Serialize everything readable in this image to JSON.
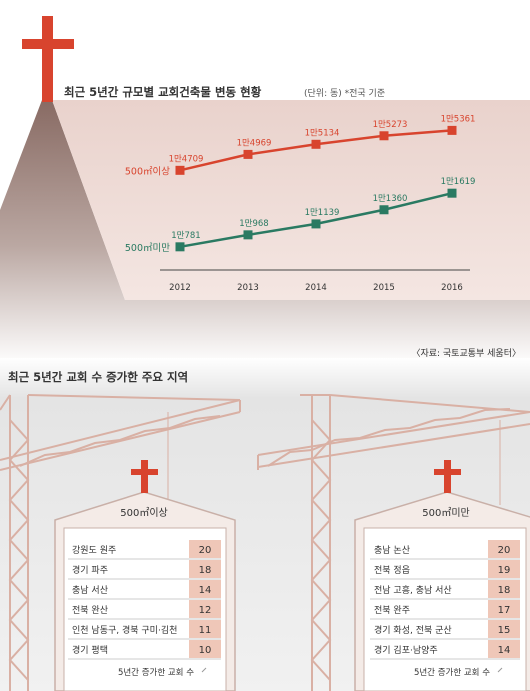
{
  "top": {
    "title": "최근 5년간 규모별 교회건축물 변동 현황",
    "unit_note": "(단위: 동) *전국 기준",
    "source": "〈자료: 국토교통부 세움터〉"
  },
  "chart_data": {
    "type": "line",
    "title": "최근 5년간 규모별 교회건축물 변동 현황",
    "unit": "(단위: 동)",
    "x": [
      "2012",
      "2013",
      "2014",
      "2015",
      "2016"
    ],
    "series": [
      {
        "name": "500㎡이상",
        "values": [
          14709,
          14969,
          15134,
          15273,
          15361
        ],
        "labels": [
          "1만4709",
          "1만4969",
          "1만5134",
          "1만5273",
          "1만5361"
        ],
        "color": "#d8442e"
      },
      {
        "name": "500㎡미만",
        "values": [
          10781,
          10968,
          11139,
          11360,
          11619
        ],
        "labels": [
          "1만781",
          "1만968",
          "1만1139",
          "1만1360",
          "1만1619"
        ],
        "color": "#2a7a62"
      }
    ]
  },
  "bottom": {
    "title": "최근 5년간 교회 수 증가한 주요 지역",
    "left": {
      "roof_label": "500㎡이상",
      "rows": [
        {
          "region": "강원도 원주",
          "value": "20"
        },
        {
          "region": "경기 파주",
          "value": "18"
        },
        {
          "region": "충남 서산",
          "value": "14"
        },
        {
          "region": "전북 완산",
          "value": "12"
        },
        {
          "region": "인천 남동구, 경북 구미·김천",
          "value": "11"
        },
        {
          "region": "경기 평택",
          "value": "10"
        }
      ],
      "footnote": "5년간 증가한 교회 수"
    },
    "right": {
      "roof_label": "500㎡미만",
      "rows": [
        {
          "region": "충남 논산",
          "value": "20"
        },
        {
          "region": "전북 정읍",
          "value": "19"
        },
        {
          "region": "전남 고흥, 충남 서산",
          "value": "18"
        },
        {
          "region": "전북 완주",
          "value": "17"
        },
        {
          "region": "경기 화성, 전북 군산",
          "value": "15"
        },
        {
          "region": "경기 김포·남양주",
          "value": "14"
        }
      ],
      "footnote": "5년간 증가한 교회 수"
    }
  },
  "colors": {
    "cross_red": "#d8442e",
    "green": "#2a7a62",
    "crane": "#d9b0a4",
    "value_box": "#efc7b8"
  }
}
